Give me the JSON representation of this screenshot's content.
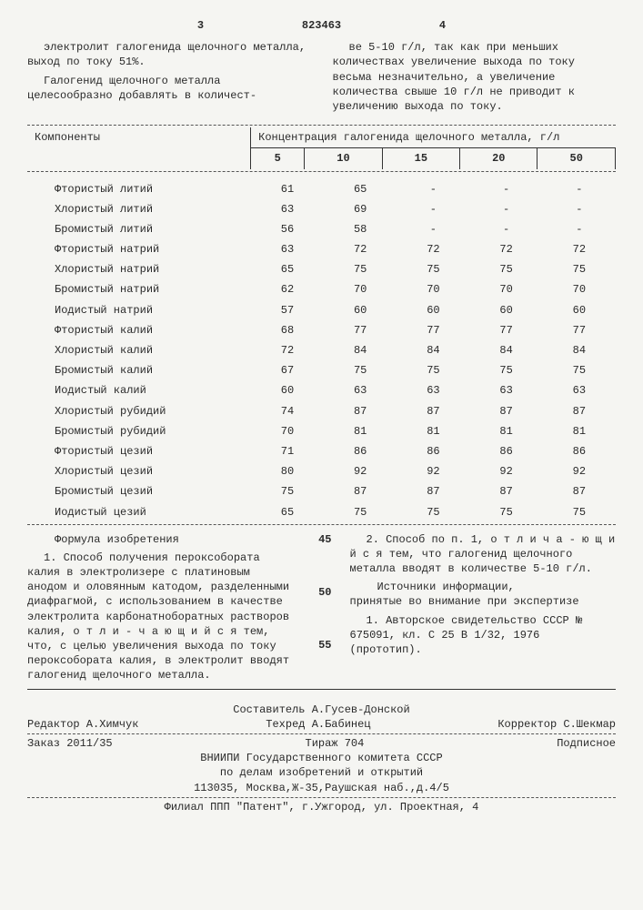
{
  "header": {
    "leftPage": "3",
    "docNumber": "823463",
    "rightPage": "4"
  },
  "intro": {
    "leftCol": {
      "p1": "электролит галогенида щелочного металла, выход по току 51%.",
      "p2": "Галогенид щелочного металла целесообразно добавлять в количест-"
    },
    "rightCol": {
      "p1": "ве 5-10 г/л, так как при меньших количествах увеличение выхода по току весьма незначительно, а увеличение количества свыше 10 г/л не приводит к увеличению выхода по току."
    }
  },
  "table": {
    "headers": {
      "components": "Компоненты",
      "concentration": "Концентрация галогенида щелочного металла, г/л",
      "cols": [
        "5",
        "10",
        "15",
        "20",
        "50"
      ]
    },
    "rows": [
      {
        "name": "Фтористый литий",
        "v": [
          "61",
          "65",
          "-",
          "-",
          "-"
        ]
      },
      {
        "name": "Хлористый литий",
        "v": [
          "63",
          "69",
          "-",
          "-",
          "-"
        ]
      },
      {
        "name": "Бромистый литий",
        "v": [
          "56",
          "58",
          "-",
          "-",
          "-"
        ]
      },
      {
        "name": "Фтористый натрий",
        "v": [
          "63",
          "72",
          "72",
          "72",
          "72"
        ]
      },
      {
        "name": "Хлористый натрий",
        "v": [
          "65",
          "75",
          "75",
          "75",
          "75"
        ]
      },
      {
        "name": "Бромистый натрий",
        "v": [
          "62",
          "70",
          "70",
          "70",
          "70"
        ]
      },
      {
        "name": "Иодистый натрий",
        "v": [
          "57",
          "60",
          "60",
          "60",
          "60"
        ]
      },
      {
        "name": "Фтористый калий",
        "v": [
          "68",
          "77",
          "77",
          "77",
          "77"
        ]
      },
      {
        "name": "Хлористый калий",
        "v": [
          "72",
          "84",
          "84",
          "84",
          "84"
        ]
      },
      {
        "name": "Бромистый калий",
        "v": [
          "67",
          "75",
          "75",
          "75",
          "75"
        ]
      },
      {
        "name": "Иодистый калий",
        "v": [
          "60",
          "63",
          "63",
          "63",
          "63"
        ]
      },
      {
        "name": "Хлористый рубидий",
        "v": [
          "74",
          "87",
          "87",
          "87",
          "87"
        ]
      },
      {
        "name": "Бромистый рубидий",
        "v": [
          "70",
          "81",
          "81",
          "81",
          "81"
        ]
      },
      {
        "name": "Фтористый цезий",
        "v": [
          "71",
          "86",
          "86",
          "86",
          "86"
        ]
      },
      {
        "name": "Хлористый цезий",
        "v": [
          "80",
          "92",
          "92",
          "92",
          "92"
        ]
      },
      {
        "name": "Бромистый цезий",
        "v": [
          "75",
          "87",
          "87",
          "87",
          "87"
        ]
      },
      {
        "name": "Иодистый цезий",
        "v": [
          "65",
          "75",
          "75",
          "75",
          "75"
        ]
      }
    ]
  },
  "marks": {
    "m45": "45",
    "m50": "50",
    "m55": "55"
  },
  "claims": {
    "title": "Формула изобретения",
    "left": "1. Способ получения пероксобората калия в электролизере с платиновым анодом и оловянным катодом, разделенными диафрагмой, с использованием в качестве электролита карбонатноборатных растворов калия, о т л и - ч а ю щ и й с я  тем, что, с целью увеличения выхода по току пероксобората калия, в электролит вводят галогенид щелочного металла.",
    "right1": "2. Способ по п. 1, о т л и ч а - ю щ и й с я  тем, что галогенид щелочного металла вводят в количестве 5-10 г/л.",
    "sourcesTitle": "Источники информации,\nпринятые во внимание при экспертизе",
    "source1": "1. Авторское свидетельство СССР № 675091, кл. С 25 В 1/32, 1976 (прототип)."
  },
  "credits": {
    "compiler": "Составитель А.Гусев-Донской",
    "editor": "Редактор А.Химчук",
    "tech": "Техред А.Бабинец",
    "corr": "Корректор С.Шекмар",
    "order": "Заказ 2011/35",
    "tirazh": "Тираж 704",
    "podpis": "Подписное",
    "org1": "ВНИИПИ Государственного комитета СССР",
    "org2": "по делам изобретений и открытий",
    "addr": "113035, Москва,Ж-35,Раушская наб.,д.4/5",
    "filial": "Филиал ППП \"Патент\", г.Ужгород, ул. Проектная, 4"
  }
}
